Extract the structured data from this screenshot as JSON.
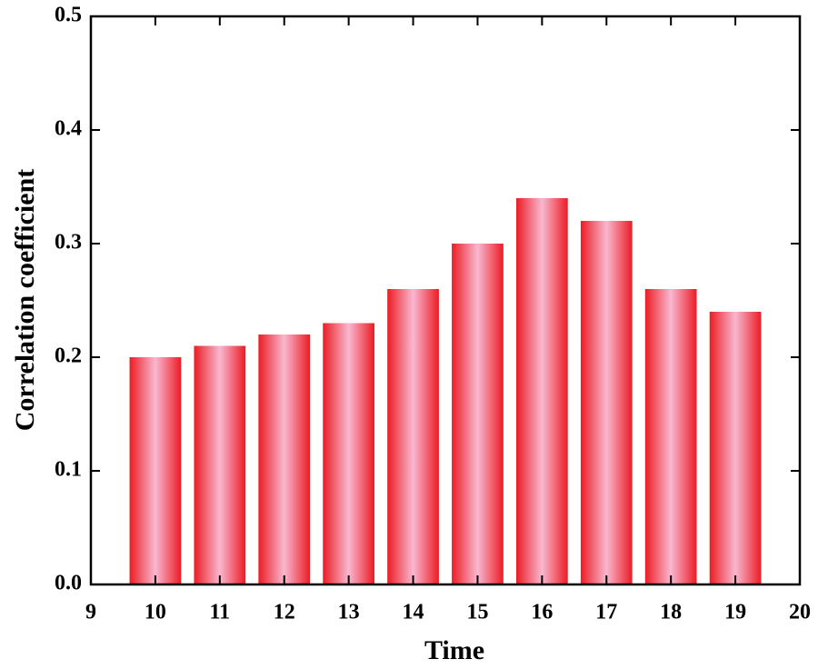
{
  "chart_data": {
    "type": "bar",
    "x_label": "Time",
    "y_label": "Correlation coefficient",
    "x": [
      10,
      11,
      12,
      13,
      14,
      15,
      16,
      17,
      18,
      19
    ],
    "values": [
      0.2,
      0.21,
      0.22,
      0.23,
      0.26,
      0.3,
      0.34,
      0.32,
      0.26,
      0.24
    ],
    "color": "#ec1c24",
    "xlim": [
      9,
      20
    ],
    "xticks": [
      9,
      10,
      11,
      12,
      13,
      14,
      15,
      16,
      17,
      18,
      19,
      20
    ],
    "ylim": [
      0,
      0.5
    ],
    "yticks": [
      {
        "value": 0,
        "label": "0.0"
      },
      0.1,
      0.2,
      0.3,
      0.4,
      0.5
    ]
  }
}
